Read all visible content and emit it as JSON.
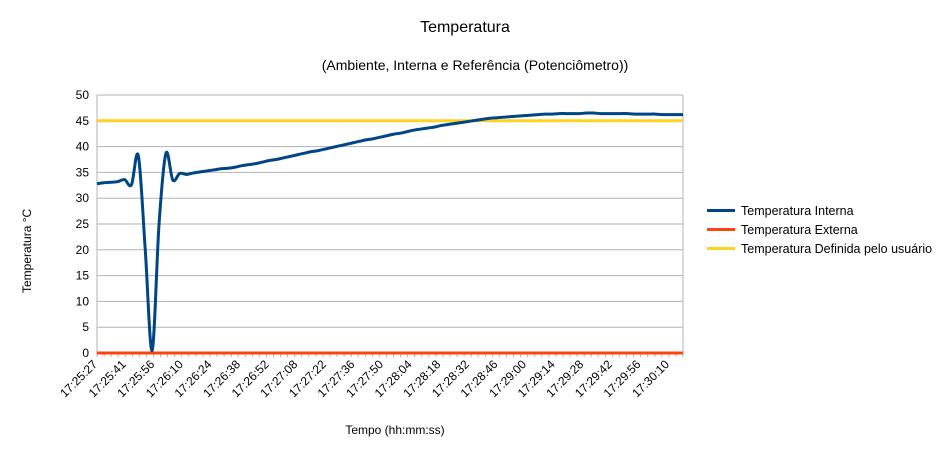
{
  "chart_data": {
    "type": "line",
    "title": "Temperatura",
    "subtitle": "(Ambiente, Interna e Referência (Potenciômetro))",
    "xlabel": "Tempo (hh:mm:ss)",
    "ylabel": "Temperatura °C",
    "ylim": [
      0,
      50
    ],
    "yticks": [
      0,
      5,
      10,
      15,
      20,
      25,
      30,
      35,
      40,
      45,
      50
    ],
    "grid": true,
    "legend_position": "right",
    "xticks": [
      "17:25:27",
      "17:25:41",
      "17:25:56",
      "17:26:10",
      "17:26:24",
      "17:26:38",
      "17:26:52",
      "17:27:08",
      "17:27:22",
      "17:27:36",
      "17:27:50",
      "17:28:04",
      "17:28:18",
      "17:28:32",
      "17:28:46",
      "17:29:00",
      "17:29:14",
      "17:29:28",
      "17:29:42",
      "17:29:56",
      "17:30:10"
    ],
    "series": [
      {
        "name": "Temperatura Interna",
        "color": "#004586",
        "x": [
          0,
          1,
          2,
          3,
          4,
          5,
          6,
          7,
          8,
          9,
          10,
          11,
          12,
          13,
          14,
          15,
          16,
          17,
          18,
          19,
          20,
          21,
          22,
          23,
          24,
          25,
          26,
          27,
          28,
          29,
          30,
          31,
          32,
          33,
          34,
          35,
          36,
          37,
          38,
          39,
          40,
          41,
          42,
          43,
          44,
          45,
          46,
          47,
          48,
          49,
          50,
          51,
          52,
          53,
          54,
          55,
          56,
          57,
          58,
          59,
          60,
          61,
          62,
          63,
          64,
          65,
          66,
          67,
          68,
          69,
          70,
          71,
          72,
          73,
          74,
          75,
          76,
          77,
          78,
          79,
          80,
          81,
          82,
          83,
          84,
          85
        ],
        "values": [
          32.8,
          33.0,
          33.1,
          33.2,
          33.6,
          32.6,
          38.2,
          20.0,
          0.5,
          25.0,
          38.7,
          33.5,
          34.8,
          34.6,
          34.9,
          35.1,
          35.3,
          35.5,
          35.7,
          35.8,
          36.0,
          36.3,
          36.5,
          36.7,
          37.0,
          37.3,
          37.5,
          37.8,
          38.1,
          38.4,
          38.7,
          39.0,
          39.2,
          39.5,
          39.8,
          40.1,
          40.4,
          40.7,
          41.0,
          41.3,
          41.5,
          41.8,
          42.1,
          42.4,
          42.6,
          42.9,
          43.2,
          43.4,
          43.6,
          43.8,
          44.1,
          44.3,
          44.5,
          44.7,
          44.9,
          45.1,
          45.3,
          45.5,
          45.6,
          45.7,
          45.8,
          45.9,
          46.0,
          46.1,
          46.2,
          46.3,
          46.3,
          46.4,
          46.4,
          46.4,
          46.4,
          46.5,
          46.5,
          46.4,
          46.4,
          46.4,
          46.4,
          46.4,
          46.3,
          46.3,
          46.3,
          46.3,
          46.2,
          46.2,
          46.2,
          46.2
        ]
      },
      {
        "name": "Temperatura Externa",
        "color": "#ff420e",
        "x": [
          0,
          85
        ],
        "values": [
          0,
          0
        ]
      },
      {
        "name": "Temperatura Definida pelo usuário",
        "color": "#ffd320",
        "x": [
          0,
          85
        ],
        "values": [
          45,
          45
        ]
      }
    ]
  }
}
